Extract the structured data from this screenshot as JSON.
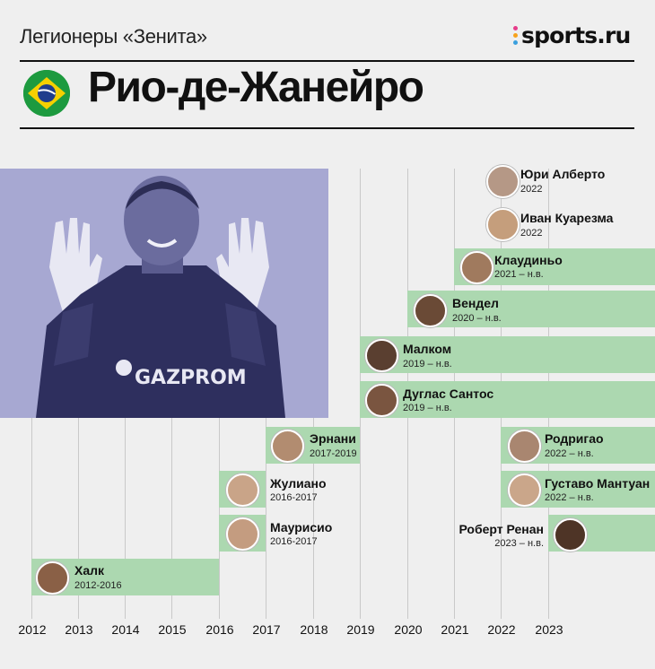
{
  "header": {
    "subtitle": "Легионеры «Зенита»",
    "brand": "sports.ru",
    "title": "Рио-де-Жанейро"
  },
  "colors": {
    "bar": "#acd8b0",
    "photo_tint": "#a7a8d2",
    "flag_green": "#1d9a3f",
    "flag_yellow": "#f5d000",
    "flag_blue": "#1f3d8c"
  },
  "timeline": {
    "years": [
      "2012",
      "2013",
      "2014",
      "2015",
      "2016",
      "2017",
      "2018",
      "2019",
      "2020",
      "2021",
      "2022",
      "2023"
    ]
  },
  "players": [
    {
      "name": "Юри Алберто",
      "years": "2022"
    },
    {
      "name": "Иван Куарезма",
      "years": "2022"
    },
    {
      "name": "Клаудиньо",
      "years": "2021 – н.в."
    },
    {
      "name": "Вендел",
      "years": "2020 – н.в."
    },
    {
      "name": "Малком",
      "years": "2019 – н.в."
    },
    {
      "name": "Дуглас Сантос",
      "years": "2019 – н.в."
    },
    {
      "name": "Эрнани",
      "years": "2017-2019"
    },
    {
      "name": "Жулиано",
      "years": "2016-2017"
    },
    {
      "name": "Маурисио",
      "years": "2016-2017"
    },
    {
      "name": "Халк",
      "years": "2012-2016"
    },
    {
      "name": "Родригао",
      "years": "2022 – н.в."
    },
    {
      "name": "Густаво Мантуан",
      "years": "2022 – н.в."
    },
    {
      "name": "Роберт Ренан",
      "years": "2023 – н.в."
    }
  ]
}
